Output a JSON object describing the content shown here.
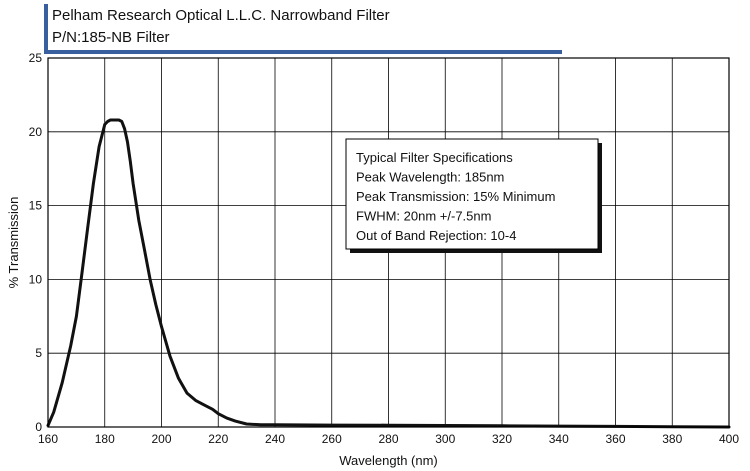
{
  "header": {
    "line1": "Pelham Research Optical L.L.C. Narrowband Filter",
    "line2": "P/N:185-NB Filter",
    "accent_color": "#3a5f9e"
  },
  "specs": {
    "title": "Typical Filter Specifications",
    "lines": [
      "Peak Wavelength: 185nm",
      "Peak Transmission: 15% Minimum",
      "FWHM: 20nm +/-7.5nm",
      "Out of Band Rejection: 10-4"
    ]
  },
  "chart_data": {
    "type": "line",
    "title": "",
    "xlabel": "Wavelength (nm)",
    "ylabel": "% Transmission",
    "xlim": [
      160,
      400
    ],
    "ylim": [
      0,
      25
    ],
    "xticks": [
      160,
      180,
      200,
      220,
      240,
      260,
      280,
      300,
      320,
      340,
      360,
      380,
      400
    ],
    "yticks": [
      0,
      5,
      10,
      15,
      20,
      25
    ],
    "grid": true,
    "legend": "none",
    "series": [
      {
        "color": "#111111",
        "x": [
          160,
          162,
          165,
          168,
          170,
          172,
          174,
          176,
          178,
          180,
          181,
          182,
          183,
          184,
          185,
          186,
          187,
          188,
          189,
          190,
          192,
          194,
          196,
          198,
          200,
          203,
          206,
          209,
          212,
          215,
          218,
          220,
          223,
          226,
          230,
          235,
          240,
          260,
          280,
          300,
          320,
          340,
          360,
          380,
          400
        ],
        "y": [
          0.1,
          1.0,
          3.0,
          5.5,
          7.5,
          10.5,
          13.5,
          16.5,
          19.0,
          20.5,
          20.7,
          20.8,
          20.8,
          20.8,
          20.8,
          20.7,
          20.2,
          19.3,
          18.0,
          16.5,
          14.0,
          12.0,
          10.0,
          8.3,
          6.8,
          4.8,
          3.3,
          2.3,
          1.8,
          1.5,
          1.2,
          0.9,
          0.6,
          0.4,
          0.2,
          0.15,
          0.15,
          0.13,
          0.12,
          0.1,
          0.08,
          0.06,
          0.04,
          0.02,
          0.0
        ]
      }
    ]
  }
}
